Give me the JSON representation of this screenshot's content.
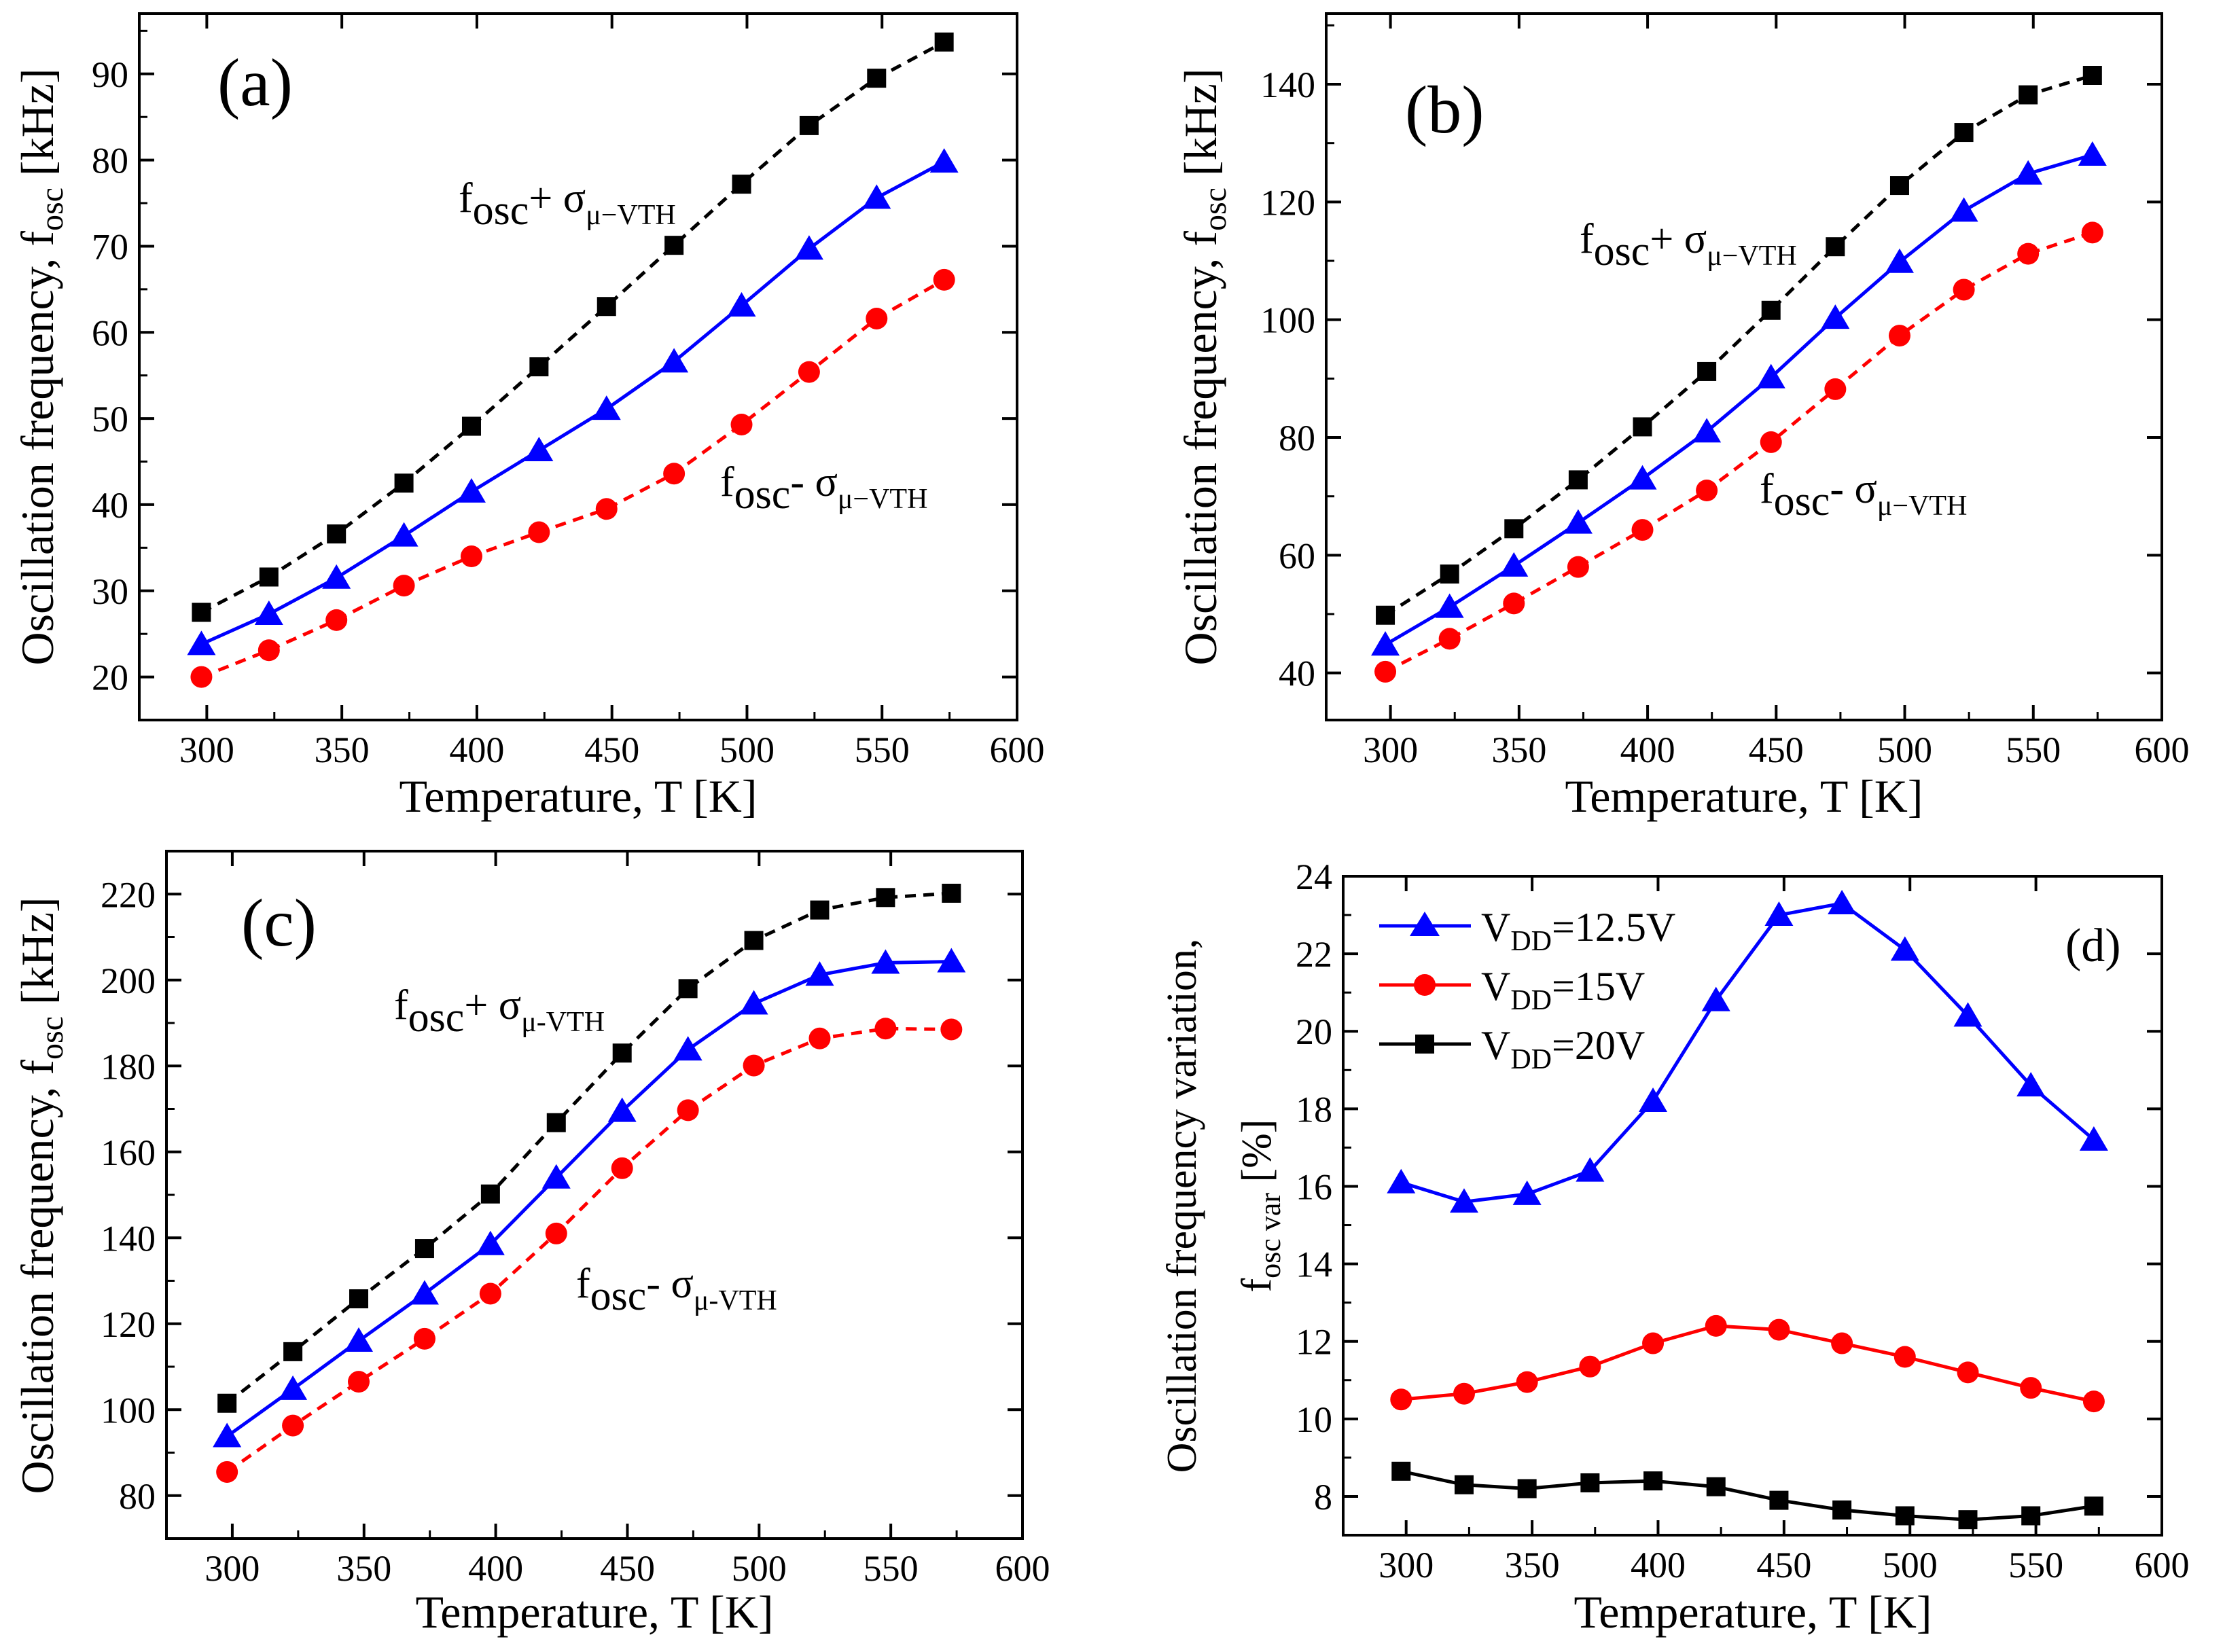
{
  "colors": {
    "black": "#000000",
    "blue": "#0000ff",
    "red": "#ff0000"
  },
  "chart_data": [
    {
      "panel": "(a)",
      "type": "line",
      "xlabel": "Temperature, T [K]",
      "ylabel": "Oscillation frequency, f",
      "ylabel_sub": "osc",
      "ylabel_unit": " [kHz]",
      "xlim": [
        275,
        600
      ],
      "ylim": [
        15,
        97
      ],
      "xticks": [
        "300",
        "350",
        "400",
        "450",
        "500",
        "550",
        "600"
      ],
      "yticks": [
        "20",
        "30",
        "40",
        "50",
        "60",
        "70",
        "80",
        "90"
      ],
      "x": [
        298,
        323,
        348,
        373,
        398,
        423,
        448,
        473,
        498,
        523,
        548,
        573
      ],
      "series": [
        {
          "name": "fosc+σ",
          "marker": "square",
          "color": "#000000",
          "dashed": true,
          "values": [
            27.5,
            31.6,
            36.6,
            42.5,
            49.1,
            56.0,
            63.0,
            70.1,
            77.2,
            84.0,
            89.5,
            93.7
          ]
        },
        {
          "name": "fosc",
          "marker": "triangle",
          "color": "#0000ff",
          "dashed": false,
          "values": [
            23.8,
            27.3,
            31.5,
            36.4,
            41.5,
            46.3,
            51.1,
            56.6,
            63.1,
            69.7,
            75.6,
            79.8
          ]
        },
        {
          "name": "fosc-σ",
          "marker": "circle",
          "color": "#ff0000",
          "dashed": true,
          "values": [
            20.0,
            23.1,
            26.6,
            30.6,
            34.0,
            36.8,
            39.5,
            43.6,
            49.3,
            55.4,
            61.6,
            66.1
          ]
        }
      ],
      "annotations": [
        {
          "pre": "f",
          "sub": "osc",
          "mid": "+ σ",
          "sub2": "μ−VTH"
        },
        {
          "pre": "f",
          "sub": "osc",
          "mid": "- σ",
          "sub2": "μ−VTH"
        }
      ]
    },
    {
      "panel": "(b)",
      "type": "line",
      "xlabel": "Temperature, T [K]",
      "ylabel": "Oscillation frequency, f",
      "ylabel_sub": "osc",
      "ylabel_unit": " [kHz]",
      "xlim": [
        275,
        600
      ],
      "ylim": [
        32,
        152
      ],
      "xticks": [
        "300",
        "350",
        "400",
        "450",
        "500",
        "550",
        "600"
      ],
      "yticks": [
        "40",
        "60",
        "80",
        "100",
        "120",
        "140"
      ],
      "x": [
        298,
        323,
        348,
        373,
        398,
        423,
        448,
        473,
        498,
        523,
        548,
        573
      ],
      "series": [
        {
          "name": "fosc+σ",
          "marker": "square",
          "color": "#000000",
          "dashed": true,
          "values": [
            49.8,
            56.8,
            64.5,
            72.8,
            81.8,
            91.2,
            101.6,
            112.4,
            122.8,
            131.8,
            138.2,
            141.5
          ]
        },
        {
          "name": "fosc",
          "marker": "triangle",
          "color": "#0000ff",
          "dashed": false,
          "values": [
            44.8,
            51.2,
            58.2,
            65.5,
            73.0,
            81.0,
            90.2,
            100.3,
            109.8,
            118.5,
            124.8,
            128.0
          ]
        },
        {
          "name": "fosc-σ",
          "marker": "circle",
          "color": "#ff0000",
          "dashed": true,
          "values": [
            40.2,
            45.8,
            51.8,
            58.0,
            64.3,
            71.0,
            79.2,
            88.2,
            97.3,
            105.1,
            111.2,
            114.8
          ]
        }
      ],
      "annotations": [
        {
          "pre": "f",
          "sub": "osc",
          "mid": "+ σ",
          "sub2": "μ−VTH"
        },
        {
          "pre": "f",
          "sub": "osc",
          "mid": "- σ",
          "sub2": "μ−VTH"
        }
      ]
    },
    {
      "panel": "(c)",
      "type": "line",
      "xlabel": "Temperature, T [K]",
      "ylabel": "Oscillation frequency, f",
      "ylabel_sub": "osc",
      "ylabel_unit": " [kHz]",
      "xlim": [
        275,
        600
      ],
      "ylim": [
        70,
        230
      ],
      "xticks": [
        "300",
        "350",
        "400",
        "450",
        "500",
        "550",
        "600"
      ],
      "yticks": [
        "80",
        "100",
        "120",
        "140",
        "160",
        "180",
        "200",
        "220"
      ],
      "x": [
        298,
        323,
        348,
        373,
        398,
        423,
        448,
        473,
        498,
        523,
        548,
        573
      ],
      "series": [
        {
          "name": "fosc+σ",
          "marker": "square",
          "color": "#000000",
          "dashed": true,
          "values": [
            101.5,
            113.5,
            125.8,
            137.5,
            150.2,
            166.8,
            183.0,
            198.0,
            209.2,
            216.3,
            219.2,
            220.2
          ]
        },
        {
          "name": "fosc",
          "marker": "triangle",
          "color": "#0000ff",
          "dashed": false,
          "values": [
            93.8,
            104.8,
            116.0,
            127.0,
            138.5,
            154.0,
            169.5,
            183.8,
            194.5,
            201.2,
            204.0,
            204.3
          ]
        },
        {
          "name": "fosc-σ",
          "marker": "circle",
          "color": "#ff0000",
          "dashed": true,
          "values": [
            85.5,
            96.3,
            106.5,
            116.5,
            127.0,
            141.0,
            156.2,
            169.7,
            180.1,
            186.4,
            188.7,
            188.5
          ]
        }
      ],
      "annotations": [
        {
          "pre": "f",
          "sub": "osc",
          "mid": "+ σ",
          "sub2": "μ-VTH"
        },
        {
          "pre": "f",
          "sub": "osc",
          "mid": "- σ",
          "sub2": "μ-VTH"
        }
      ]
    },
    {
      "panel": "(d)",
      "type": "line",
      "xlabel": "Temperature, T [K]",
      "ylabel": "Oscillation frequency variation,",
      "ylabel2": "f",
      "ylabel2_sub": "osc var",
      "ylabel2_unit": " [%]",
      "xlim": [
        275,
        600
      ],
      "ylim": [
        7,
        24
      ],
      "xticks": [
        "300",
        "350",
        "400",
        "450",
        "500",
        "550",
        "600"
      ],
      "yticks": [
        "8",
        "10",
        "12",
        "14",
        "16",
        "18",
        "20",
        "22",
        "24"
      ],
      "x": [
        298,
        323,
        348,
        373,
        398,
        423,
        448,
        473,
        498,
        523,
        548,
        573
      ],
      "series": [
        {
          "name": "12.5V",
          "marker": "triangle",
          "color": "#0000ff",
          "dashed": false,
          "values": [
            16.1,
            15.6,
            15.8,
            16.4,
            18.2,
            20.8,
            23.0,
            23.3,
            22.1,
            20.4,
            18.6,
            17.2
          ]
        },
        {
          "name": "15V",
          "marker": "circle",
          "color": "#ff0000",
          "dashed": false,
          "values": [
            10.5,
            10.65,
            10.95,
            11.35,
            11.95,
            12.4,
            12.3,
            11.95,
            11.6,
            11.2,
            10.8,
            10.45
          ]
        },
        {
          "name": "20V",
          "marker": "square",
          "color": "#000000",
          "dashed": false,
          "values": [
            8.65,
            8.3,
            8.2,
            8.35,
            8.4,
            8.25,
            7.9,
            7.65,
            7.5,
            7.4,
            7.5,
            7.75
          ]
        }
      ],
      "legend": {
        "position": "top-left",
        "entries": [
          {
            "pre": "V",
            "sub": "DD",
            "val": "=12.5V",
            "marker": "triangle",
            "color": "#0000ff"
          },
          {
            "pre": "V",
            "sub": "DD",
            "val": "=15V",
            "marker": "circle",
            "color": "#ff0000"
          },
          {
            "pre": "V",
            "sub": "DD",
            "val": "=20V",
            "marker": "square",
            "color": "#000000"
          }
        ]
      }
    }
  ]
}
